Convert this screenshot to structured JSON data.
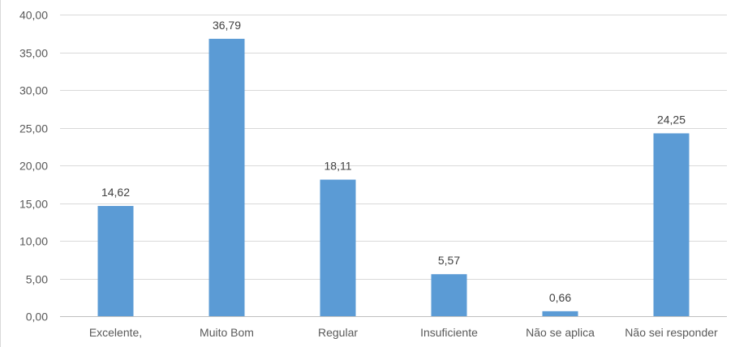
{
  "chart_data": {
    "type": "bar",
    "title": "",
    "xlabel": "",
    "ylabel": "",
    "categories": [
      "Excelente,",
      "Muito Bom",
      "Regular",
      "Insuficiente",
      "Não se aplica",
      "Não sei responder"
    ],
    "values": [
      14.62,
      36.79,
      18.11,
      5.57,
      0.66,
      24.25
    ],
    "value_labels": [
      "14,62",
      "36,79",
      "18,11",
      "5,57",
      "0,66",
      "24,25"
    ],
    "ylim": [
      0,
      40
    ],
    "y_ticks": [
      0,
      5,
      10,
      15,
      20,
      25,
      30,
      35,
      40
    ],
    "y_tick_labels": [
      "0,00",
      "5,00",
      "10,00",
      "15,00",
      "20,00",
      "25,00",
      "30,00",
      "35,00",
      "40,00"
    ],
    "grid": true,
    "legend": "none",
    "bar_color": "#5b9bd5"
  }
}
